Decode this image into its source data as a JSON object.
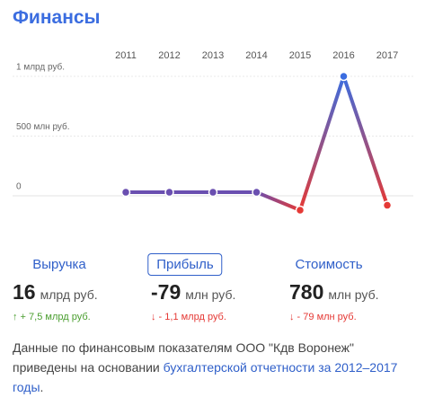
{
  "title": "Финансы",
  "chart_data": {
    "type": "line",
    "categories": [
      "2011",
      "2012",
      "2013",
      "2014",
      "2015",
      "2016",
      "2017"
    ],
    "values": [
      30,
      30,
      30,
      30,
      -120,
      1000,
      -79
    ],
    "point_colors": [
      "#6a4fb0",
      "#6a4fb0",
      "#6a4fb0",
      "#6a4fb0",
      "#e53935",
      "#3b6de0",
      "#e53935"
    ],
    "ylim": [
      -150,
      1000
    ],
    "yticks": [
      0,
      {
        "value": 500,
        "label": "500 млн руб."
      },
      {
        "value": 1000,
        "label": "1 млрд руб."
      }
    ],
    "grid": true
  },
  "selected_metric": 1,
  "metrics": [
    {
      "tab": "Выручка",
      "value": 16,
      "unit": "млрд руб.",
      "change": "↑ + 7,5 млрд руб.",
      "direction": "up"
    },
    {
      "tab": "Прибыль",
      "value": -79,
      "unit": "млн руб.",
      "change": "↓ - 1,1 млрд руб.",
      "direction": "down"
    },
    {
      "tab": "Стоимость",
      "value": 780,
      "unit": "млн руб.",
      "change": "↓ - 79 млн руб.",
      "direction": "down"
    }
  ],
  "note": {
    "text": "Данные по финансовым показателям ООО \"Кдв Воронеж\" приведены на основании ",
    "link": "бухгалтерской отчетности за 2012–2017 годы",
    "end": "."
  }
}
